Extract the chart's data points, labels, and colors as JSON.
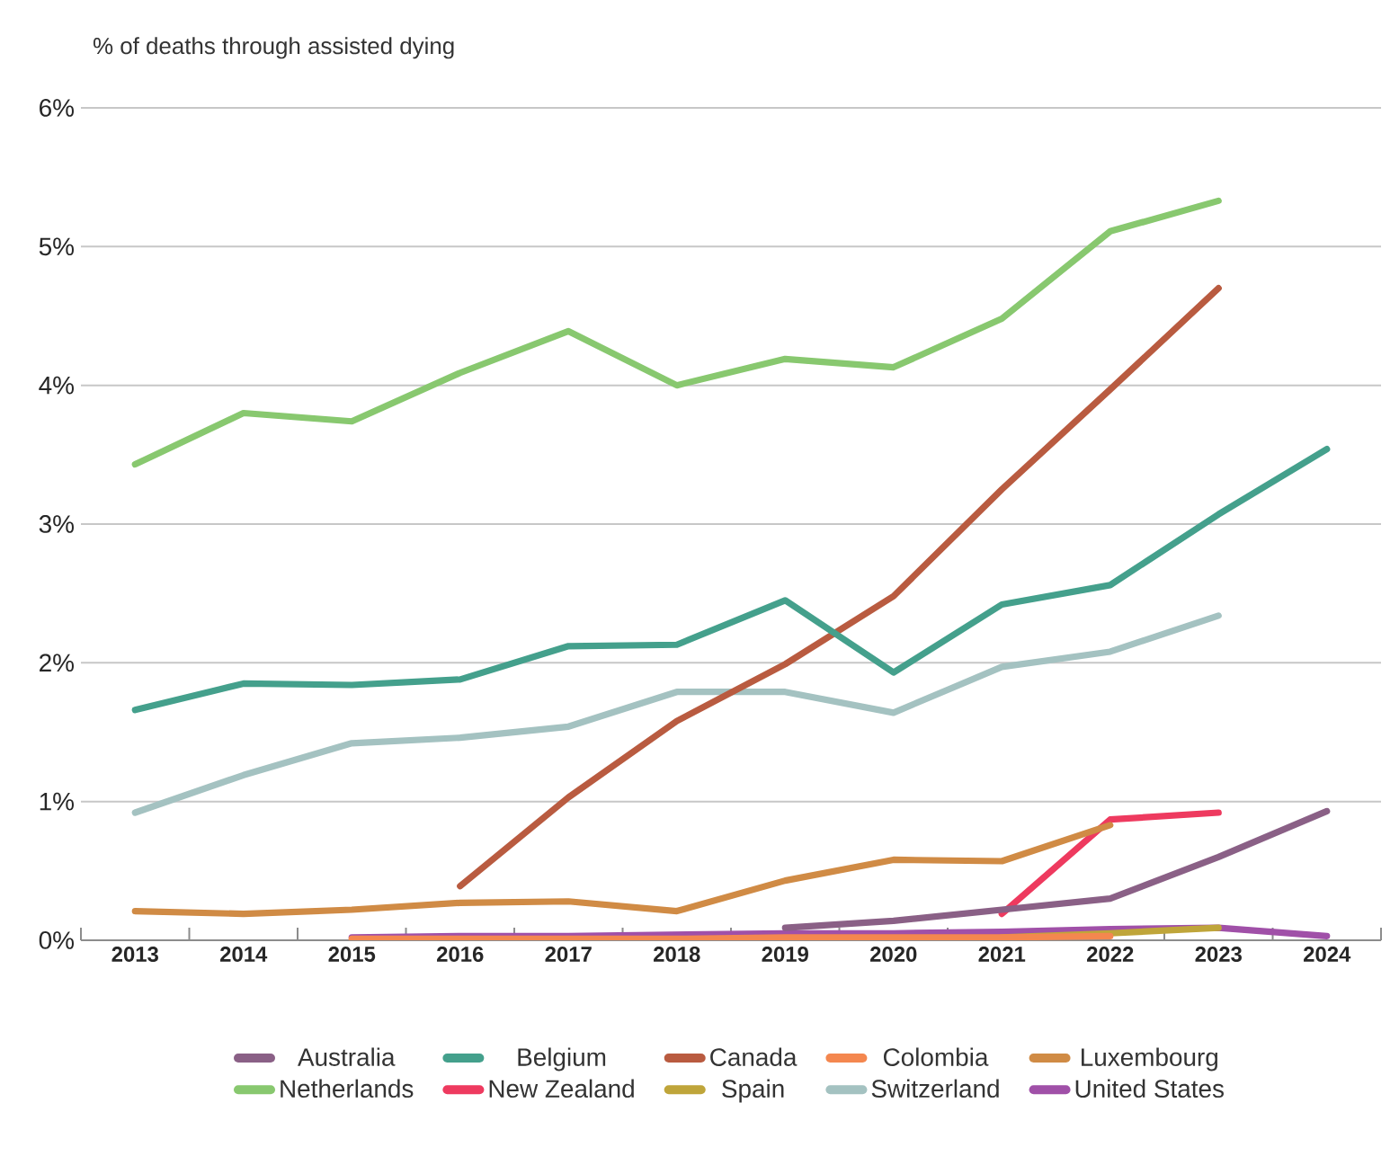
{
  "chart_data": {
    "type": "line",
    "ylabel": "% of deaths through assisted dying",
    "categories": [
      "2013",
      "2014",
      "2015",
      "2016",
      "2017",
      "2018",
      "2019",
      "2020",
      "2021",
      "2022",
      "2023",
      "2024"
    ],
    "ylim": [
      0,
      6
    ],
    "yticks": [
      {
        "value": 0,
        "label": "0%"
      },
      {
        "value": 1,
        "label": "1%"
      },
      {
        "value": 2,
        "label": "2%"
      },
      {
        "value": 3,
        "label": "3%"
      },
      {
        "value": 4,
        "label": "4%"
      },
      {
        "value": 5,
        "label": "5%"
      },
      {
        "value": 6,
        "label": "6%"
      }
    ],
    "grid": "y",
    "legend": "bottom",
    "line_style": "solid",
    "marker": "none",
    "series": [
      {
        "name": "Australia",
        "color": "#8a6086",
        "values": [
          null,
          null,
          null,
          null,
          null,
          null,
          0.09,
          0.14,
          0.22,
          0.3,
          0.6,
          0.93
        ]
      },
      {
        "name": "Belgium",
        "color": "#44a08c",
        "values": [
          1.66,
          1.85,
          1.84,
          1.88,
          2.12,
          2.13,
          2.45,
          1.93,
          2.42,
          2.56,
          3.07,
          3.54
        ]
      },
      {
        "name": "Canada",
        "color": "#b95b40",
        "values": [
          null,
          null,
          null,
          0.39,
          1.03,
          1.58,
          1.99,
          2.48,
          3.25,
          3.97,
          4.7,
          null
        ]
      },
      {
        "name": "Colombia",
        "color": "#f4874f",
        "values": [
          null,
          null,
          0.01,
          0.01,
          0.01,
          0.01,
          0.02,
          0.02,
          0.02,
          0.03,
          null,
          null
        ]
      },
      {
        "name": "Luxembourg",
        "color": "#d08b45",
        "values": [
          0.21,
          0.19,
          0.22,
          0.27,
          0.28,
          0.21,
          0.43,
          0.58,
          0.57,
          0.83,
          null,
          null
        ]
      },
      {
        "name": "Netherlands",
        "color": "#88c86f",
        "values": [
          3.43,
          3.8,
          3.74,
          4.09,
          4.39,
          4.0,
          4.19,
          4.13,
          4.48,
          5.11,
          5.33,
          null
        ]
      },
      {
        "name": "New Zealand",
        "color": "#ee3a5f",
        "values": [
          null,
          null,
          null,
          null,
          null,
          null,
          null,
          null,
          0.19,
          0.87,
          0.92,
          null
        ]
      },
      {
        "name": "Spain",
        "color": "#bfa53a",
        "values": [
          null,
          null,
          null,
          null,
          null,
          null,
          null,
          null,
          0.02,
          0.05,
          0.09,
          null
        ]
      },
      {
        "name": "Switzerland",
        "color": "#a4c2c1",
        "values": [
          0.92,
          1.19,
          1.42,
          1.46,
          1.54,
          1.79,
          1.79,
          1.64,
          1.97,
          2.08,
          2.34,
          null
        ]
      },
      {
        "name": "United States",
        "color": "#a050a8",
        "values": [
          null,
          null,
          0.02,
          0.03,
          0.03,
          0.04,
          0.05,
          0.05,
          0.06,
          0.08,
          0.09,
          0.03
        ]
      }
    ]
  }
}
